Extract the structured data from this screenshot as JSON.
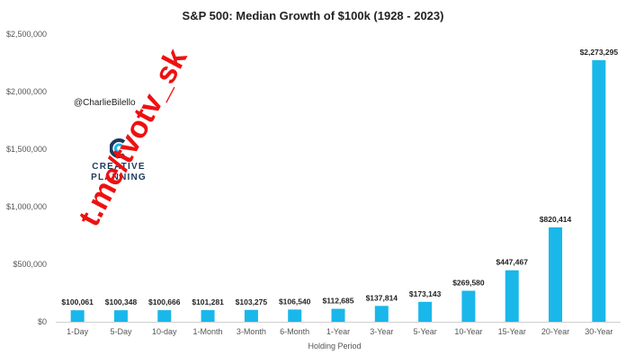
{
  "chart_data": {
    "type": "bar",
    "title": "S&P 500: Median Growth of $100k (1928 - 2023)",
    "xlabel": "Holding Period",
    "ylabel": "",
    "ylim": [
      0,
      2500000
    ],
    "yticks": [
      0,
      500000,
      1000000,
      1500000,
      2000000,
      2500000
    ],
    "ytick_labels": [
      "$0",
      "$500,000",
      "$1,000,000",
      "$1,500,000",
      "$2,000,000",
      "$2,500,000"
    ],
    "grid": false,
    "categories": [
      "1-Day",
      "5-Day",
      "10-day",
      "1-Month",
      "3-Month",
      "6-Month",
      "1-Year",
      "3-Year",
      "5-Year",
      "10-Year",
      "15-Year",
      "20-Year",
      "30-Year"
    ],
    "values": [
      100061,
      100348,
      100666,
      101281,
      103275,
      106540,
      112685,
      137814,
      173143,
      269580,
      447467,
      820414,
      2273295
    ],
    "data_labels": [
      "$100,061",
      "$100,348",
      "$100,666",
      "$101,281",
      "$103,275",
      "$106,540",
      "$112,685",
      "$137,814",
      "$173,143",
      "$269,580",
      "$447,467",
      "$820,414",
      "$2,273,295"
    ],
    "bar_color": "#1ab7ea"
  },
  "handle": "@CharlieBilello",
  "logo": {
    "line1": "CREATIVE",
    "line2": "PLANNING",
    "mark_color": "#1f3a5f"
  },
  "watermark": {
    "text": "t.me/tvotv_sk",
    "color": "#ee1111"
  }
}
